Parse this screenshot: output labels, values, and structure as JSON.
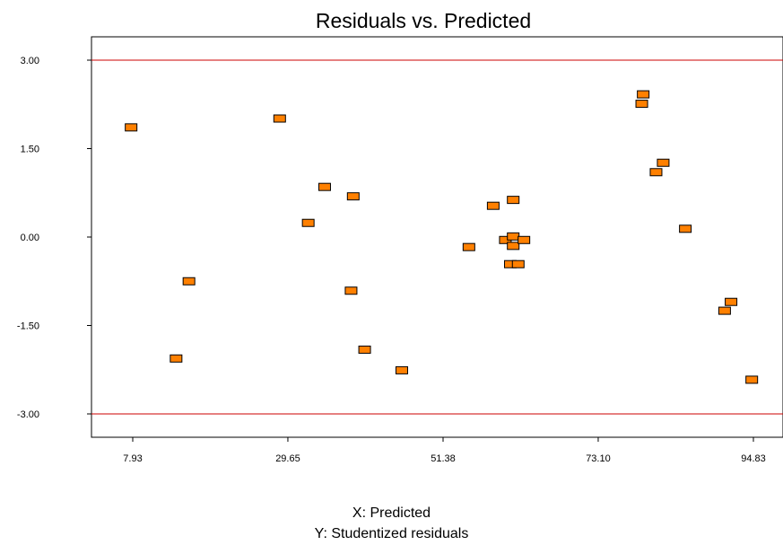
{
  "chart_data": {
    "type": "scatter",
    "title": "Residuals vs. Predicted",
    "xlabel": "X: Predicted",
    "ylabel": "Y: Studentized residuals",
    "xlim": [
      7.93,
      94.83
    ],
    "ylim": [
      -3.0,
      3.0
    ],
    "x_ticks": [
      "7.93",
      "29.65",
      "51.38",
      "73.10",
      "94.83"
    ],
    "y_ticks": [
      "3.00",
      "1.50",
      "0.00",
      "-1.50",
      "-3.00"
    ],
    "reference_lines": [
      3.0,
      -3.0
    ],
    "grid": false,
    "colors": {
      "points": "#ff8000",
      "point_border": "#000000",
      "limit_line": "#cc0000"
    },
    "points": [
      {
        "x": 7.7,
        "y": 1.86
      },
      {
        "x": 14.0,
        "y": -2.06
      },
      {
        "x": 15.8,
        "y": -0.75
      },
      {
        "x": 28.5,
        "y": 2.01
      },
      {
        "x": 32.5,
        "y": 0.24
      },
      {
        "x": 34.8,
        "y": 0.85
      },
      {
        "x": 38.8,
        "y": 0.69
      },
      {
        "x": 38.5,
        "y": -0.91
      },
      {
        "x": 40.4,
        "y": -1.91
      },
      {
        "x": 45.6,
        "y": -2.26
      },
      {
        "x": 55.0,
        "y": -0.17
      },
      {
        "x": 58.4,
        "y": 0.53
      },
      {
        "x": 60.1,
        "y": -0.05
      },
      {
        "x": 61.2,
        "y": 0.63
      },
      {
        "x": 61.2,
        "y": 0.01
      },
      {
        "x": 61.2,
        "y": -0.15
      },
      {
        "x": 60.8,
        "y": -0.46
      },
      {
        "x": 61.9,
        "y": -0.46
      },
      {
        "x": 62.7,
        "y": -0.05
      },
      {
        "x": 79.4,
        "y": 2.42
      },
      {
        "x": 79.2,
        "y": 2.26
      },
      {
        "x": 81.2,
        "y": 1.1
      },
      {
        "x": 82.2,
        "y": 1.26
      },
      {
        "x": 85.3,
        "y": 0.14
      },
      {
        "x": 90.8,
        "y": -1.25
      },
      {
        "x": 91.7,
        "y": -1.1
      },
      {
        "x": 94.6,
        "y": -2.42
      }
    ]
  }
}
